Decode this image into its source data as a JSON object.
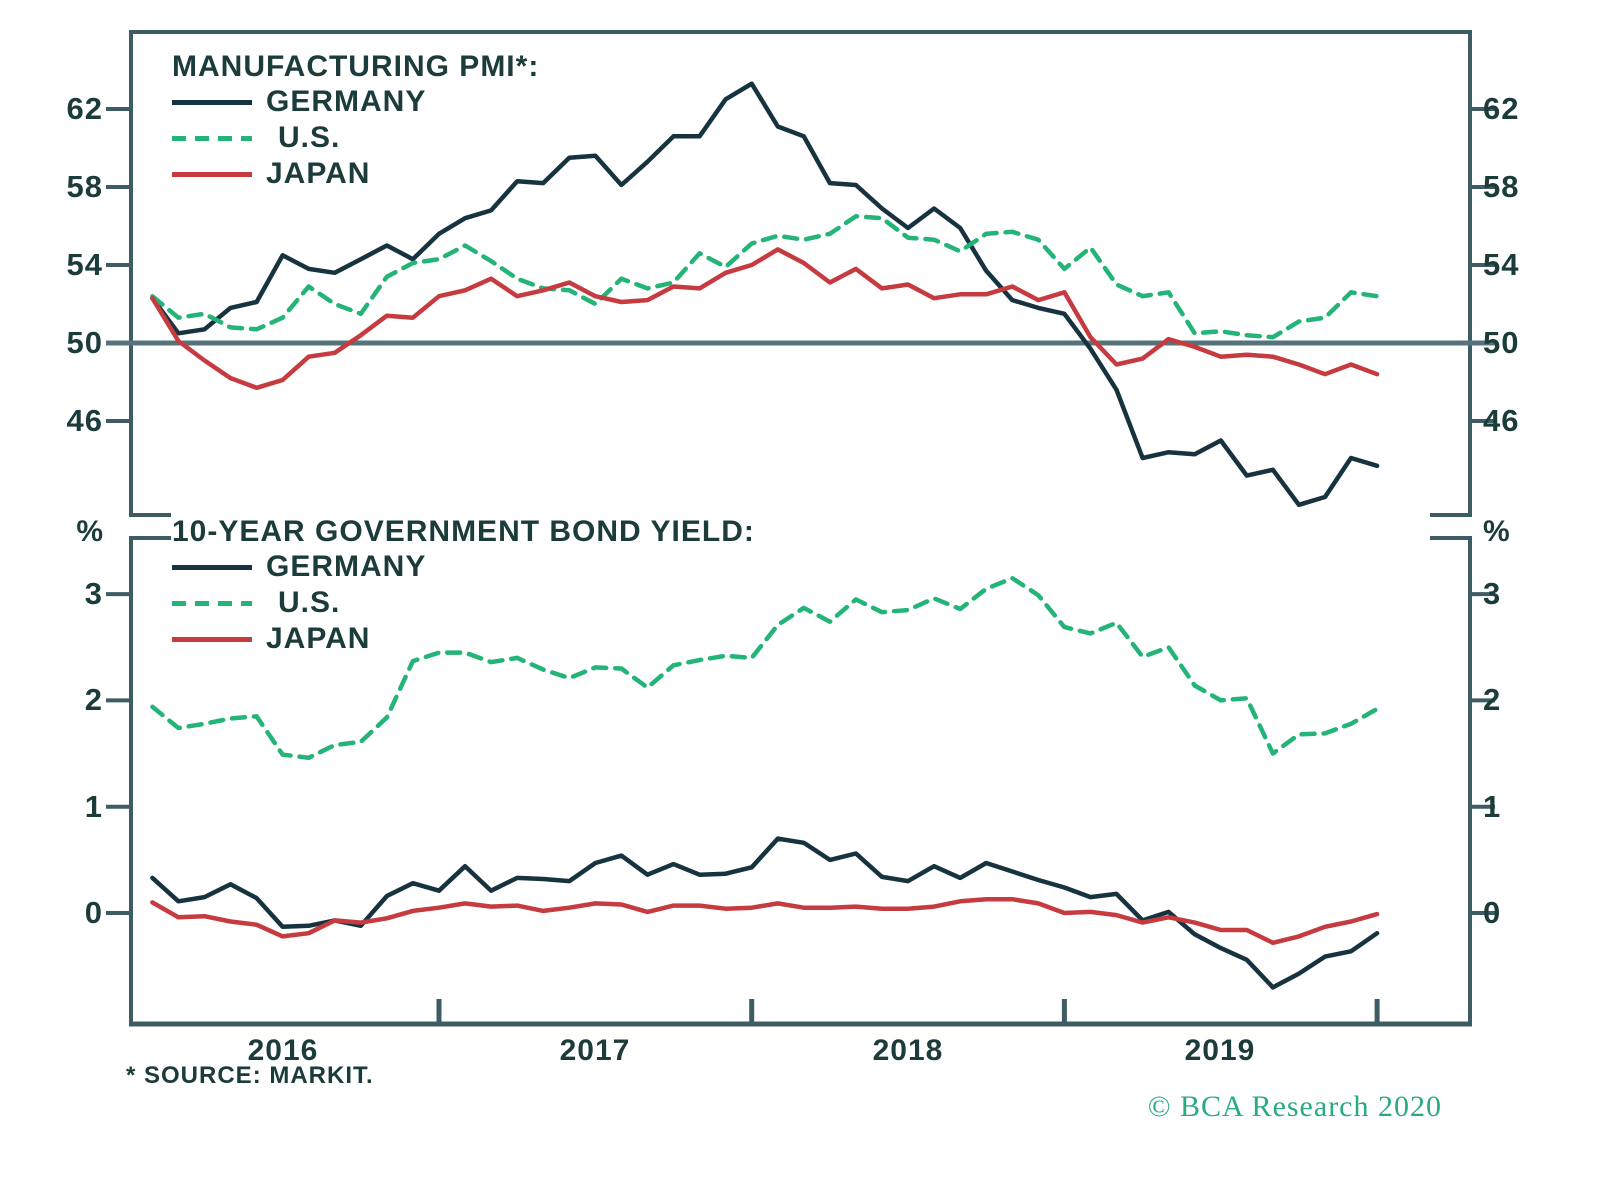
{
  "colors": {
    "text": "#1c3b3b",
    "frame": "#3e5c63",
    "reference_line": "#56737b",
    "germany": "#17333f",
    "us": "#24b478",
    "japan": "#c53b40",
    "copyright_green": "#29aa7f"
  },
  "x_axis": {
    "year_labels": [
      "2016",
      "2017",
      "2018",
      "2019"
    ],
    "start": "2016-01",
    "end": "2019-12",
    "frequency": "monthly"
  },
  "footer": {
    "source_note": "* SOURCE: MARKIT.",
    "copyright": "© BCA Research 2020"
  },
  "chart_data": [
    {
      "type": "line",
      "id": "pmi",
      "title": "MANUFACTURING PMI*:",
      "unit": "",
      "yticks": [
        62,
        58,
        54,
        50,
        46
      ],
      "ylim": [
        41.2,
        65.8
      ],
      "reference_line": 50,
      "legend_position": "top-left",
      "grid": false,
      "series": [
        {
          "name": "GERMANY",
          "color": "#17333f",
          "style": "solid",
          "values": [
            52.3,
            50.5,
            50.7,
            51.8,
            52.1,
            54.5,
            53.8,
            53.6,
            54.3,
            55.0,
            54.3,
            55.6,
            56.4,
            56.8,
            58.3,
            58.2,
            59.5,
            59.6,
            58.1,
            59.3,
            60.6,
            60.6,
            62.5,
            63.3,
            61.1,
            60.6,
            58.2,
            58.1,
            56.9,
            55.9,
            56.9,
            55.9,
            53.7,
            52.2,
            51.8,
            51.5,
            49.7,
            47.6,
            44.1,
            44.4,
            44.3,
            45.0,
            43.2,
            43.5,
            41.7,
            42.1,
            44.1,
            43.7
          ]
        },
        {
          "name": "U.S.",
          "color": "#24b478",
          "style": "dashed",
          "values": [
            52.4,
            51.3,
            51.5,
            50.8,
            50.7,
            51.3,
            52.9,
            52.0,
            51.5,
            53.4,
            54.1,
            54.3,
            55.0,
            54.2,
            53.3,
            52.8,
            52.7,
            52.0,
            53.3,
            52.8,
            53.1,
            54.6,
            53.9,
            55.1,
            55.5,
            55.3,
            55.6,
            56.5,
            56.4,
            55.4,
            55.3,
            54.7,
            55.6,
            55.7,
            55.3,
            53.8,
            54.9,
            53.0,
            52.4,
            52.6,
            50.5,
            50.6,
            50.4,
            50.3,
            51.1,
            51.3,
            52.6,
            52.4
          ]
        },
        {
          "name": "JAPAN",
          "color": "#c53b40",
          "style": "solid",
          "values": [
            52.3,
            50.1,
            49.1,
            48.2,
            47.7,
            48.1,
            49.3,
            49.5,
            50.4,
            51.4,
            51.3,
            52.4,
            52.7,
            53.3,
            52.4,
            52.7,
            53.1,
            52.4,
            52.1,
            52.2,
            52.9,
            52.8,
            53.6,
            54.0,
            54.8,
            54.1,
            53.1,
            53.8,
            52.8,
            53.0,
            52.3,
            52.5,
            52.5,
            52.9,
            52.2,
            52.6,
            50.3,
            48.9,
            49.2,
            50.2,
            49.8,
            49.3,
            49.4,
            49.3,
            48.9,
            48.4,
            48.9,
            48.4
          ]
        }
      ]
    },
    {
      "type": "line",
      "id": "bond-yield",
      "title": "10-YEAR GOVERNMENT BOND YIELD:",
      "unit": "%",
      "yticks": [
        3,
        2,
        1,
        0
      ],
      "ylim": [
        -1.05,
        3.6
      ],
      "reference_line": null,
      "legend_position": "top-left",
      "grid": false,
      "series": [
        {
          "name": "GERMANY",
          "color": "#17333f",
          "style": "solid",
          "values": [
            0.33,
            0.11,
            0.15,
            0.27,
            0.14,
            -0.13,
            -0.12,
            -0.07,
            -0.12,
            0.16,
            0.28,
            0.21,
            0.44,
            0.21,
            0.33,
            0.32,
            0.3,
            0.47,
            0.54,
            0.36,
            0.46,
            0.36,
            0.37,
            0.43,
            0.7,
            0.66,
            0.5,
            0.56,
            0.34,
            0.3,
            0.44,
            0.33,
            0.47,
            0.39,
            0.31,
            0.24,
            0.15,
            0.18,
            -0.07,
            0.01,
            -0.2,
            -0.33,
            -0.44,
            -0.7,
            -0.57,
            -0.41,
            -0.36,
            -0.19
          ]
        },
        {
          "name": "U.S.",
          "color": "#24b478",
          "style": "dashed",
          "values": [
            1.94,
            1.74,
            1.78,
            1.83,
            1.85,
            1.49,
            1.46,
            1.58,
            1.61,
            1.84,
            2.37,
            2.45,
            2.45,
            2.36,
            2.4,
            2.29,
            2.21,
            2.31,
            2.3,
            2.12,
            2.33,
            2.38,
            2.42,
            2.4,
            2.71,
            2.87,
            2.74,
            2.95,
            2.83,
            2.85,
            2.96,
            2.86,
            3.05,
            3.15,
            2.99,
            2.69,
            2.63,
            2.73,
            2.41,
            2.5,
            2.14,
            2.0,
            2.02,
            1.5,
            1.68,
            1.69,
            1.78,
            1.92
          ]
        },
        {
          "name": "JAPAN",
          "color": "#c53b40",
          "style": "solid",
          "values": [
            0.1,
            -0.04,
            -0.03,
            -0.08,
            -0.11,
            -0.22,
            -0.19,
            -0.07,
            -0.09,
            -0.05,
            0.02,
            0.05,
            0.09,
            0.06,
            0.07,
            0.02,
            0.05,
            0.09,
            0.08,
            0.01,
            0.07,
            0.07,
            0.04,
            0.05,
            0.09,
            0.05,
            0.05,
            0.06,
            0.04,
            0.04,
            0.06,
            0.11,
            0.13,
            0.13,
            0.09,
            0.0,
            0.01,
            -0.02,
            -0.09,
            -0.04,
            -0.09,
            -0.16,
            -0.16,
            -0.28,
            -0.22,
            -0.13,
            -0.08,
            -0.01
          ]
        }
      ]
    }
  ]
}
